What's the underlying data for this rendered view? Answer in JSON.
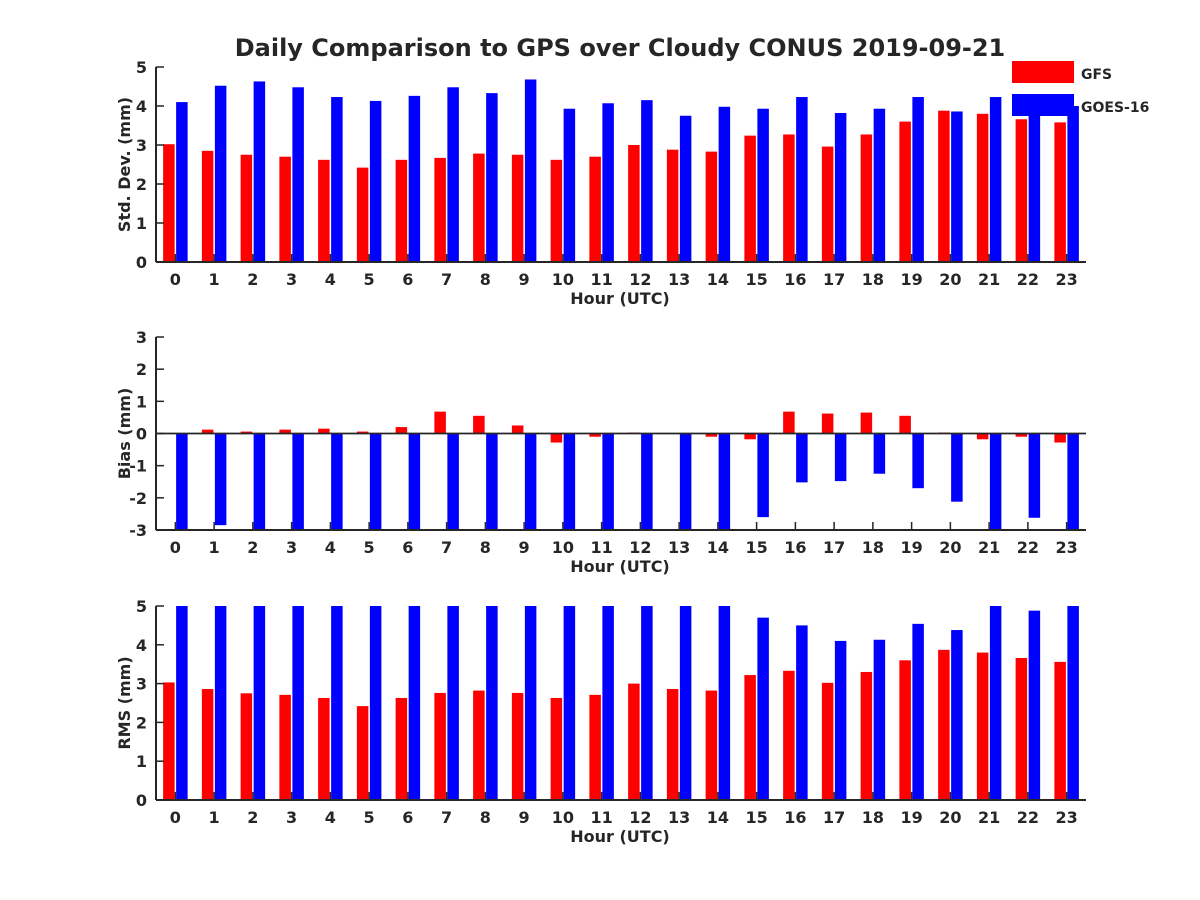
{
  "title": "Daily Comparison to GPS over Cloudy CONUS 2019-09-21",
  "colors": {
    "GFS": "#ff0000",
    "GOES-16": "#0000ff",
    "axis": "#262626"
  },
  "legend": {
    "placement": "top-right",
    "entries": [
      "GFS",
      "GOES-16"
    ]
  },
  "chart_data": [
    {
      "type": "bar",
      "xlabel": "Hour (UTC)",
      "ylabel": "Std. Dev. (mm)",
      "ylim": [
        0,
        5
      ],
      "yticks": [
        0,
        1,
        2,
        3,
        4,
        5
      ],
      "categories": [
        "0",
        "1",
        "2",
        "3",
        "4",
        "5",
        "6",
        "7",
        "8",
        "9",
        "10",
        "11",
        "12",
        "13",
        "14",
        "15",
        "16",
        "17",
        "18",
        "19",
        "20",
        "21",
        "22",
        "23"
      ],
      "series": [
        {
          "name": "GFS",
          "values": [
            3.02,
            2.85,
            2.75,
            2.7,
            2.62,
            2.42,
            2.62,
            2.67,
            2.78,
            2.75,
            2.62,
            2.7,
            3.0,
            2.88,
            2.83,
            3.24,
            3.27,
            2.96,
            3.27,
            3.6,
            3.88,
            3.8,
            3.66,
            3.58
          ]
        },
        {
          "name": "GOES-16",
          "values": [
            4.1,
            4.52,
            4.63,
            4.48,
            4.23,
            4.13,
            4.26,
            4.48,
            4.33,
            4.68,
            3.93,
            4.07,
            4.15,
            3.75,
            3.98,
            3.93,
            4.23,
            3.82,
            3.93,
            4.23,
            3.86,
            4.23,
            4.13,
            4.0
          ]
        }
      ]
    },
    {
      "type": "bar",
      "xlabel": "Hour (UTC)",
      "ylabel": "Bias (mm)",
      "ylim": [
        -3,
        3
      ],
      "yticks": [
        -3,
        -2,
        -1,
        0,
        1,
        2,
        3
      ],
      "categories": [
        "0",
        "1",
        "2",
        "3",
        "4",
        "5",
        "6",
        "7",
        "8",
        "9",
        "10",
        "11",
        "12",
        "13",
        "14",
        "15",
        "16",
        "17",
        "18",
        "19",
        "20",
        "21",
        "22",
        "23"
      ],
      "series": [
        {
          "name": "GFS",
          "values": [
            0.0,
            0.12,
            0.06,
            0.12,
            0.15,
            0.06,
            0.2,
            0.68,
            0.55,
            0.25,
            -0.28,
            -0.1,
            0.03,
            0.0,
            -0.1,
            -0.18,
            0.68,
            0.62,
            0.65,
            0.55,
            0.03,
            -0.18,
            -0.1,
            -0.28
          ]
        },
        {
          "name": "GOES-16",
          "values": [
            -3.0,
            -2.85,
            -3.0,
            -3.0,
            -3.0,
            -3.0,
            -3.0,
            -3.0,
            -3.0,
            -3.0,
            -3.0,
            -3.0,
            -3.0,
            -3.0,
            -3.0,
            -2.6,
            -1.52,
            -1.48,
            -1.25,
            -1.7,
            -2.12,
            -2.98,
            -2.62,
            -3.0
          ]
        }
      ]
    },
    {
      "type": "bar",
      "xlabel": "Hour (UTC)",
      "ylabel": "RMS (mm)",
      "ylim": [
        0,
        5
      ],
      "yticks": [
        0,
        1,
        2,
        3,
        4,
        5
      ],
      "categories": [
        "0",
        "1",
        "2",
        "3",
        "4",
        "5",
        "6",
        "7",
        "8",
        "9",
        "10",
        "11",
        "12",
        "13",
        "14",
        "15",
        "16",
        "17",
        "18",
        "19",
        "20",
        "21",
        "22",
        "23"
      ],
      "series": [
        {
          "name": "GFS",
          "values": [
            3.03,
            2.86,
            2.75,
            2.71,
            2.63,
            2.42,
            2.63,
            2.76,
            2.82,
            2.76,
            2.63,
            2.71,
            3.0,
            2.86,
            2.82,
            3.22,
            3.33,
            3.02,
            3.3,
            3.6,
            3.87,
            3.8,
            3.66,
            3.56
          ]
        },
        {
          "name": "GOES-16",
          "values": [
            5.0,
            5.0,
            5.0,
            5.0,
            5.0,
            5.0,
            5.0,
            5.0,
            5.0,
            5.0,
            5.0,
            5.0,
            5.0,
            5.0,
            5.0,
            4.7,
            4.5,
            4.1,
            4.13,
            4.54,
            4.38,
            5.0,
            4.88,
            5.0
          ]
        }
      ]
    }
  ]
}
